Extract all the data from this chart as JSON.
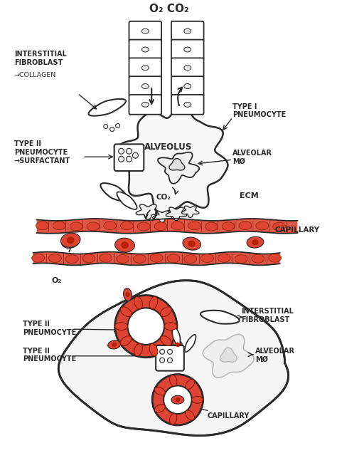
{
  "bg_color": "#ffffff",
  "ink_color": "#2a2a2a",
  "red_color": "#cc3322",
  "red_fill": "#dd4433",
  "fig_width": 4.74,
  "fig_height": 6.36,
  "title_text": "O₂ CO₂",
  "labels_top": {
    "interstitial_fibroblast": "INTERSTITIAL\nFIBROBLAST",
    "collagen": "→COLLAGEN",
    "type1_pneumocyte": "TYPE I\nPNEUMOCYTE",
    "type2_pneumocyte": "TYPE II\nPNEUMOCYTE\n→SURFACTANT",
    "alveolus": "ALVEOLUS",
    "alveolar_mo": "ALVEOLAR\nMØ",
    "co2": "CO₂",
    "ecm": "ECM",
    "o2": "O₂",
    "capillary": "CAPILLARY"
  },
  "labels_bottom": {
    "type2_pneumocyte_1": "TYPE II\nPNEUMOCYTE",
    "type2_pneumocyte_2": "TYPE II\nPNEUMOCYTE",
    "interstitial_fibroblast": "INTERSTITIAL\nFIBROBLAST",
    "alveolar_mo": "ALVEOLAR\nMØ",
    "capillary": "CAPILLARY"
  }
}
